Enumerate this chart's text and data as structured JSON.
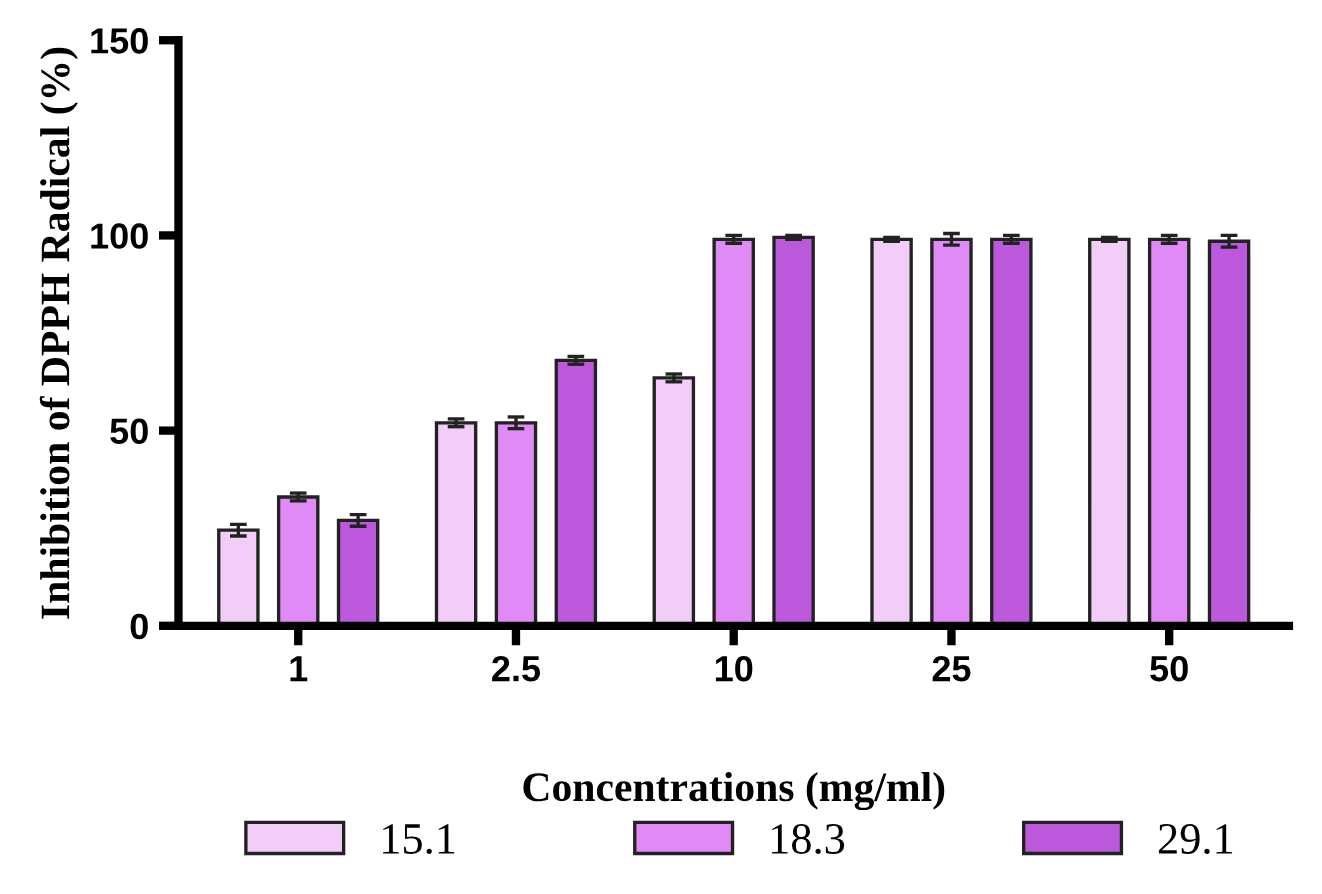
{
  "chart_data": {
    "type": "bar",
    "xlabel": "Concentrations (mg/ml)",
    "ylabel": "Inhibition of DPPH Radical (%)",
    "categories": [
      "1",
      "2.5",
      "10",
      "25",
      "50"
    ],
    "series": [
      {
        "name": "15.1",
        "color": "#f2cdf7",
        "values": [
          24.5,
          52,
          63.5,
          99,
          99
        ],
        "errors": [
          1.5,
          1,
          1,
          0.5,
          0.5
        ]
      },
      {
        "name": "18.3",
        "color": "#e08af5",
        "values": [
          33,
          52,
          99,
          99,
          99
        ],
        "errors": [
          1,
          1.5,
          1,
          1.5,
          1
        ]
      },
      {
        "name": "29.1",
        "color": "#bb58db",
        "values": [
          27,
          68,
          99.5,
          99,
          98.5
        ],
        "errors": [
          1.5,
          1,
          0.5,
          1,
          1.5
        ]
      }
    ],
    "ylim": [
      0,
      150
    ],
    "yticks": [
      0,
      50,
      100,
      150
    ],
    "grid": false,
    "legend": "bottom"
  }
}
